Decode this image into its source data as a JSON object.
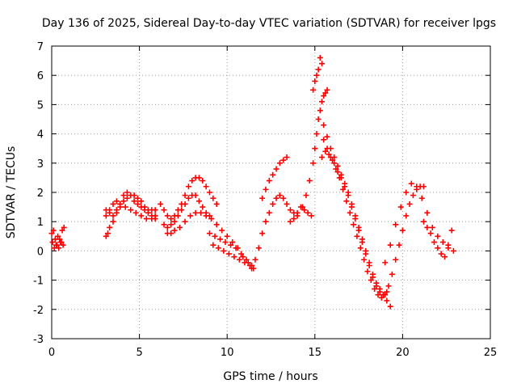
{
  "chart_data": {
    "type": "scatter",
    "title": "Day 136 of 2025, Sidereal Day-to-day VTEC variation (SDTVAR) for receiver lpgs",
    "xlabel": "GPS time / hours",
    "ylabel": "SDTVAR / TECUs",
    "xlim": [
      0,
      25
    ],
    "ylim": [
      -3,
      7
    ],
    "xticks": [
      "0",
      "5",
      "10",
      "15",
      "20",
      "25"
    ],
    "yticks": [
      "-3",
      "-2",
      "-1",
      "0",
      "1",
      "2",
      "3",
      "4",
      "5",
      "6",
      "7"
    ],
    "grid": true,
    "marker": "plus",
    "color": "#ff0000",
    "series": [
      {
        "name": "SDTVAR",
        "x": [
          0.0,
          0.1,
          0.2,
          0.3,
          0.4,
          0.5,
          0.6,
          0.7,
          0.05,
          0.15,
          0.25,
          0.35,
          0.45,
          0.55,
          0.65,
          3.1,
          3.2,
          3.3,
          3.5,
          3.7,
          3.9,
          4.1,
          4.3,
          4.5,
          4.7,
          4.9,
          5.1,
          5.3,
          5.5,
          5.7,
          5.9,
          3.1,
          3.3,
          3.5,
          3.7,
          3.9,
          4.1,
          4.3,
          4.5,
          4.7,
          4.9,
          5.1,
          5.3,
          5.5,
          5.7,
          5.9,
          3.1,
          3.3,
          3.5,
          3.7,
          3.9,
          4.2,
          4.5,
          4.8,
          5.1,
          5.4,
          5.7,
          5.9,
          6.2,
          6.4,
          6.6,
          6.8,
          7.0,
          7.2,
          7.4,
          7.6,
          7.8,
          8.0,
          8.2,
          8.4,
          8.6,
          8.8,
          9.0,
          9.2,
          9.4,
          6.4,
          6.6,
          6.8,
          7.0,
          7.2,
          7.4,
          7.6,
          7.8,
          8.0,
          8.2,
          8.4,
          8.6,
          8.8,
          9.0,
          6.6,
          6.8,
          7.0,
          7.3,
          7.6,
          7.9,
          8.2,
          8.5,
          8.8,
          9.1,
          9.4,
          9.7,
          10.0,
          10.3,
          10.6,
          10.9,
          11.2,
          11.4,
          9.0,
          9.3,
          9.6,
          9.9,
          10.2,
          10.5,
          10.8,
          11.1,
          11.4,
          9.2,
          9.5,
          9.8,
          10.1,
          10.4,
          10.7,
          11.0,
          11.3,
          11.5,
          11.6,
          11.8,
          12.0,
          12.2,
          12.4,
          12.6,
          12.8,
          13.0,
          13.2,
          13.4,
          13.6,
          13.8,
          14.0,
          12.0,
          12.2,
          12.4,
          12.6,
          12.8,
          13.0,
          13.2,
          13.4,
          13.6,
          13.8,
          14.0,
          14.2,
          14.4,
          14.6,
          14.8,
          14.3,
          14.5,
          14.7,
          14.9,
          15.0,
          15.1,
          15.2,
          15.3,
          15.4,
          15.5,
          15.6,
          15.7,
          14.9,
          15.0,
          15.1,
          15.2,
          15.3,
          15.4,
          15.5,
          15.7,
          15.9,
          16.1,
          16.3,
          16.5,
          16.7,
          16.9,
          17.1,
          17.3,
          17.5,
          17.7,
          17.9,
          18.1,
          18.3,
          18.5,
          18.7,
          18.9,
          19.1,
          19.3,
          15.5,
          15.7,
          15.9,
          16.1,
          16.3,
          16.5,
          16.7,
          16.9,
          17.1,
          17.3,
          17.5,
          17.7,
          17.9,
          18.1,
          18.3,
          18.5,
          18.7,
          18.9,
          19.1,
          15.4,
          15.6,
          15.8,
          16.0,
          16.2,
          16.4,
          16.6,
          16.8,
          17.0,
          17.2,
          17.4,
          17.6,
          17.8,
          18.0,
          18.2,
          18.4,
          18.6,
          18.8,
          19.0,
          19.2,
          19.4,
          19.6,
          19.8,
          20.0,
          20.2,
          20.4,
          20.6,
          20.8,
          21.0,
          21.2,
          19.0,
          19.3,
          19.6,
          19.9,
          20.2,
          20.5,
          20.8,
          21.1,
          21.4,
          21.7,
          22.0,
          22.3,
          22.6,
          22.9,
          21.2,
          21.4,
          21.6,
          21.8,
          22.0,
          22.2,
          22.4,
          22.6,
          22.8
        ],
        "y": [
          0.6,
          0.7,
          0.4,
          0.2,
          0.1,
          0.3,
          0.7,
          0.8,
          0.3,
          0.1,
          0.2,
          0.5,
          0.4,
          0.3,
          0.2,
          0.5,
          0.6,
          0.8,
          1.0,
          1.3,
          1.5,
          1.7,
          1.8,
          1.9,
          1.9,
          1.8,
          1.7,
          1.5,
          1.4,
          1.4,
          1.4,
          1.4,
          1.3,
          1.2,
          1.4,
          1.6,
          1.9,
          2.0,
          1.9,
          1.7,
          1.6,
          1.5,
          1.4,
          1.3,
          1.2,
          1.1,
          1.2,
          1.4,
          1.6,
          1.7,
          1.6,
          1.5,
          1.4,
          1.3,
          1.2,
          1.1,
          1.1,
          1.2,
          1.6,
          1.4,
          1.2,
          1.1,
          1.2,
          1.4,
          1.6,
          1.9,
          2.2,
          2.4,
          2.5,
          2.5,
          2.4,
          2.2,
          2.0,
          1.8,
          1.6,
          0.9,
          0.8,
          0.9,
          1.0,
          1.2,
          1.4,
          1.6,
          1.8,
          1.9,
          1.9,
          1.7,
          1.5,
          1.3,
          1.2,
          0.6,
          0.6,
          0.7,
          0.8,
          1.0,
          1.2,
          1.3,
          1.3,
          1.2,
          1.1,
          0.9,
          0.7,
          0.5,
          0.3,
          0.1,
          -0.2,
          -0.4,
          -0.6,
          0.6,
          0.5,
          0.4,
          0.3,
          0.2,
          0.1,
          -0.1,
          -0.3,
          -0.5,
          0.2,
          0.1,
          0.0,
          -0.1,
          -0.2,
          -0.3,
          -0.4,
          -0.5,
          -0.6,
          -0.3,
          0.1,
          0.6,
          1.0,
          1.3,
          1.6,
          1.8,
          1.9,
          1.8,
          1.6,
          1.4,
          1.3,
          1.2,
          1.8,
          2.1,
          2.4,
          2.6,
          2.8,
          3.0,
          3.1,
          3.2,
          1.0,
          1.1,
          1.3,
          1.5,
          1.4,
          1.3,
          1.2,
          1.5,
          1.9,
          2.4,
          3.0,
          3.5,
          4.0,
          4.5,
          4.8,
          5.1,
          5.3,
          5.4,
          5.5,
          5.5,
          5.8,
          6.0,
          6.2,
          6.6,
          6.4,
          4.3,
          3.9,
          3.5,
          3.2,
          2.9,
          2.6,
          2.3,
          2.0,
          1.6,
          1.2,
          0.8,
          0.4,
          0.0,
          -0.4,
          -0.8,
          -1.1,
          -1.3,
          -1.5,
          -1.7,
          -1.9,
          3.8,
          3.5,
          3.2,
          3.0,
          2.7,
          2.5,
          2.2,
          1.9,
          1.5,
          1.1,
          0.7,
          0.3,
          -0.1,
          -0.5,
          -0.9,
          -1.2,
          -1.4,
          -1.5,
          -1.4,
          3.2,
          3.4,
          3.3,
          3.1,
          2.8,
          2.5,
          2.1,
          1.7,
          1.3,
          0.9,
          0.5,
          0.1,
          -0.3,
          -0.7,
          -1.0,
          -1.3,
          -1.5,
          -1.6,
          -1.5,
          -1.2,
          -0.8,
          -0.3,
          0.2,
          0.7,
          1.2,
          1.6,
          1.9,
          2.1,
          2.2,
          2.2,
          -0.4,
          0.2,
          0.9,
          1.5,
          2.0,
          2.3,
          2.2,
          1.8,
          1.3,
          0.8,
          0.5,
          0.3,
          0.1,
          0.0,
          1.0,
          0.8,
          0.6,
          0.3,
          0.1,
          -0.1,
          -0.2,
          0.2,
          0.7
        ]
      }
    ]
  }
}
